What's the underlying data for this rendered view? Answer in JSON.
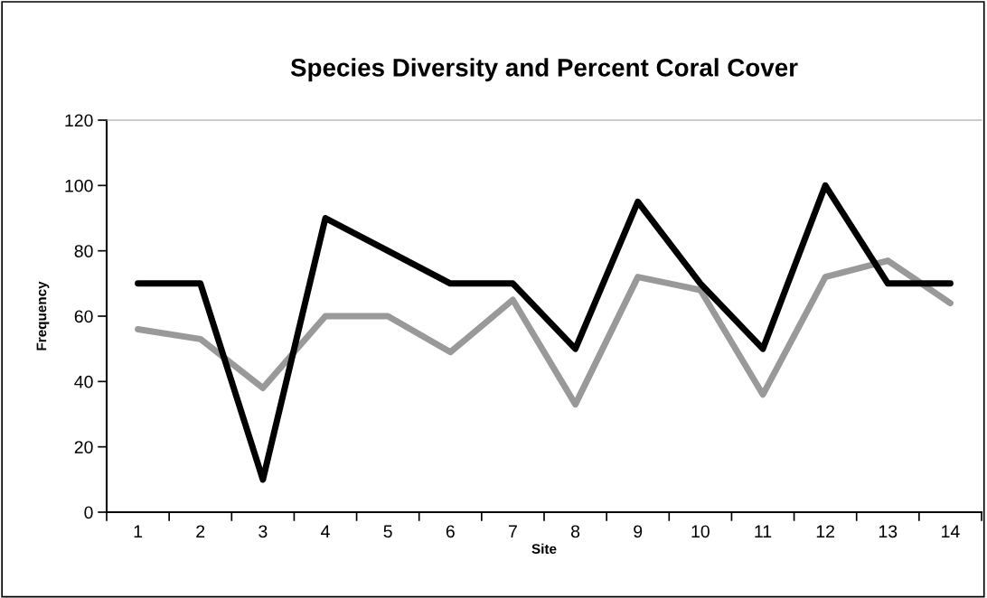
{
  "chart_data": {
    "type": "line",
    "title": "Species Diversity and Percent Coral Cover",
    "xlabel": "Site",
    "ylabel": "Frequency",
    "categories": [
      "1",
      "2",
      "3",
      "4",
      "5",
      "6",
      "7",
      "8",
      "9",
      "10",
      "11",
      "12",
      "13",
      "14"
    ],
    "series": [
      {
        "color": "#999999",
        "values": [
          56,
          53,
          38,
          60,
          60,
          49,
          65,
          33,
          72,
          68,
          36,
          72,
          77,
          64
        ]
      },
      {
        "color": "#000000",
        "values": [
          70,
          70,
          10,
          90,
          80,
          70,
          70,
          50,
          95,
          70,
          50,
          100,
          70,
          70
        ]
      }
    ],
    "ylim": [
      0,
      120
    ],
    "yticks": [
      0,
      20,
      40,
      60,
      80,
      100,
      120
    ],
    "grid": false,
    "legend": false,
    "marker": "none",
    "line_style": "solid"
  }
}
